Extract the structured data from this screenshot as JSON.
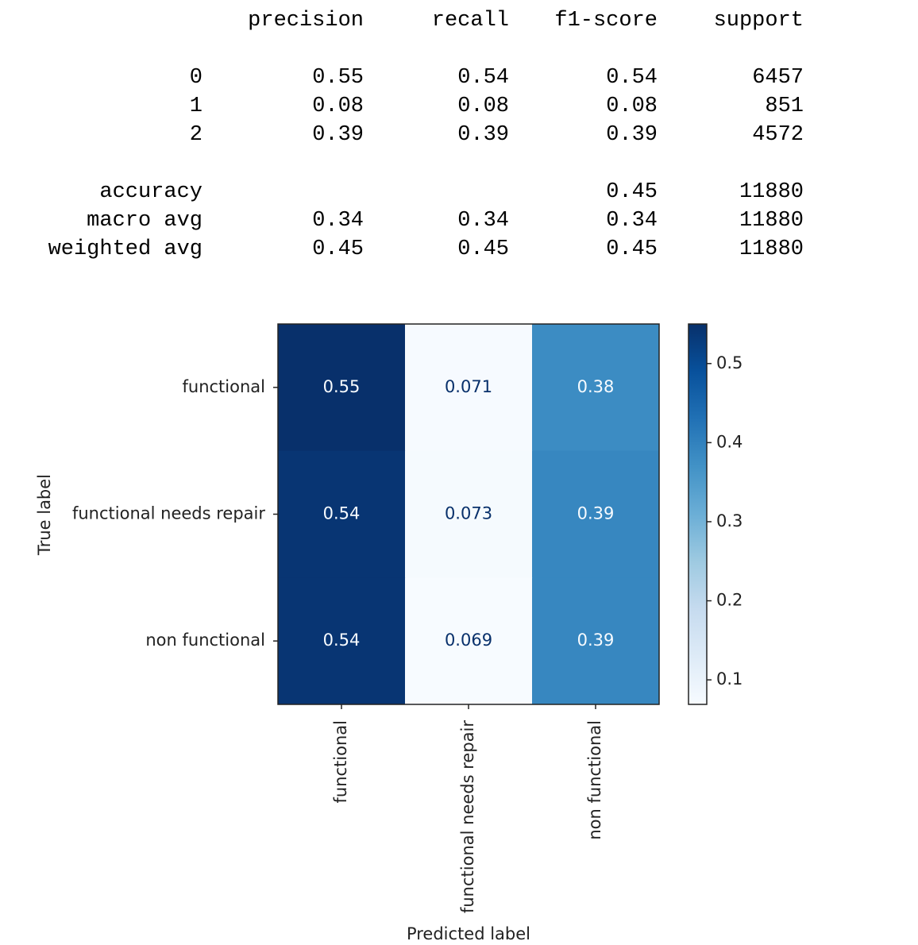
{
  "report": {
    "columns": [
      "precision",
      "recall",
      "f1-score",
      "support"
    ],
    "classes": [
      [
        "0",
        "0.55",
        "0.54",
        "0.54",
        "6457"
      ],
      [
        "1",
        "0.08",
        "0.08",
        "0.08",
        "851"
      ],
      [
        "2",
        "0.39",
        "0.39",
        "0.39",
        "4572"
      ]
    ],
    "averages": [
      [
        "accuracy",
        null,
        null,
        "0.45",
        "11880"
      ],
      [
        "macro avg",
        "0.34",
        "0.34",
        "0.34",
        "11880"
      ],
      [
        "weighted avg",
        "0.45",
        "0.45",
        "0.45",
        "11880"
      ]
    ]
  },
  "chart_data": {
    "type": "heatmap",
    "x_label": "Predicted label",
    "y_label": "True label",
    "x_categories": [
      "functional",
      "functional needs repair",
      "non functional"
    ],
    "y_categories": [
      "functional",
      "functional needs repair",
      "non functional"
    ],
    "values": [
      [
        0.55,
        0.071,
        0.38
      ],
      [
        0.54,
        0.073,
        0.39
      ],
      [
        0.54,
        0.069,
        0.39
      ]
    ],
    "colormap": "Blues",
    "clim": [
      0.069,
      0.55
    ],
    "cticks": [
      0.1,
      0.2,
      0.3,
      0.4,
      0.5
    ]
  }
}
